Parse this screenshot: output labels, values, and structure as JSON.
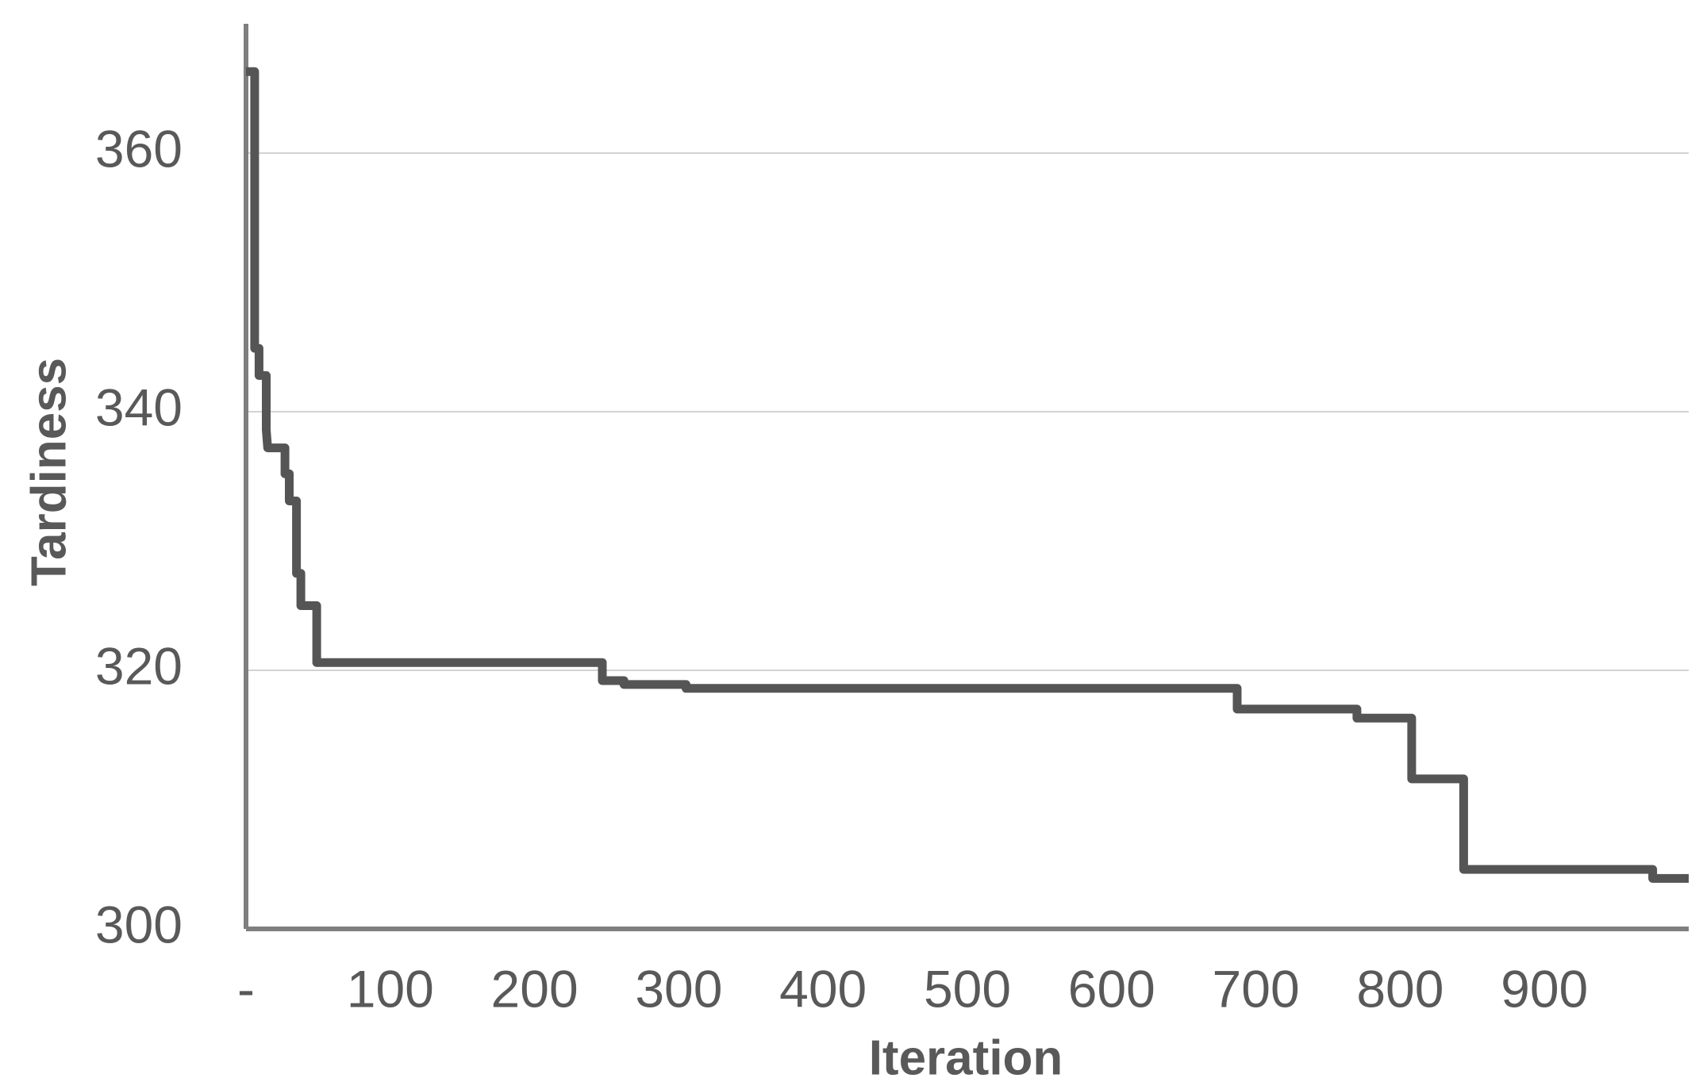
{
  "chart_data": {
    "type": "line",
    "step": true,
    "x_label": "Iteration",
    "y_label": "Tardiness",
    "x": [
      0,
      6,
      6,
      9,
      9,
      14,
      14,
      15,
      27,
      27,
      30,
      30,
      35,
      35,
      38,
      38,
      49,
      49,
      247,
      247,
      262,
      262,
      305,
      305,
      687,
      687,
      770,
      770,
      808,
      808,
      844,
      844,
      975,
      975,
      1000
    ],
    "series": [
      {
        "color": "#555555",
        "values": [
          366.3,
          366.3,
          344.9,
          344.9,
          342.8,
          342.8,
          338.6,
          337.2,
          337.2,
          335.2,
          335.2,
          333.1,
          333.1,
          327.5,
          327.5,
          325,
          325,
          320.6,
          320.6,
          319.2,
          319.2,
          318.9,
          318.9,
          318.6,
          318.6,
          317,
          317,
          316.3,
          316.3,
          311.6,
          311.6,
          304.6,
          304.6,
          303.9,
          303.9
        ]
      }
    ],
    "xlim": [
      0,
      1000
    ],
    "xticks": [
      {
        "value": 0,
        "label": "-"
      },
      100,
      200,
      300,
      400,
      500,
      600,
      700,
      800,
      900
    ],
    "ylim": [
      300,
      370
    ],
    "yticks": [
      300,
      320,
      340,
      360
    ],
    "grid": true
  }
}
